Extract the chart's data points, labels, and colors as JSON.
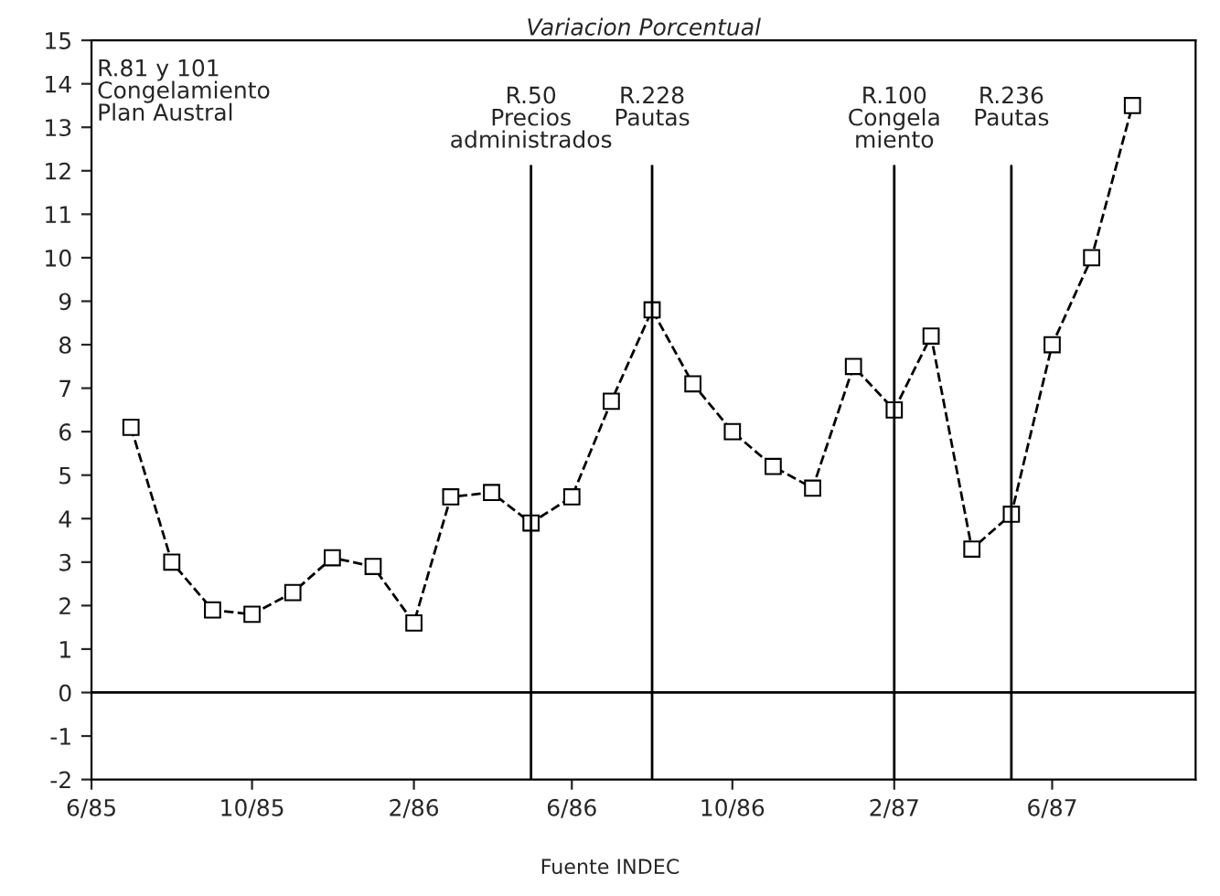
{
  "chart_data": {
    "type": "line",
    "title": "Variacion Porcentual",
    "x": [
      "1985-07",
      "1985-08",
      "1985-09",
      "1985-10",
      "1985-11",
      "1985-12",
      "1986-01",
      "1986-02",
      "1986-03",
      "1986-04",
      "1986-05",
      "1986-06",
      "1986-07",
      "1986-08",
      "1986-09",
      "1986-10",
      "1986-11",
      "1986-12",
      "1987-01",
      "1987-02",
      "1987-03",
      "1987-04",
      "1987-05",
      "1987-06",
      "1987-07",
      "1987-08"
    ],
    "series": [
      {
        "color": "#000000",
        "values": [
          6.1,
          3.0,
          1.9,
          1.8,
          2.3,
          3.1,
          2.9,
          1.6,
          4.5,
          4.6,
          3.9,
          4.5,
          6.7,
          8.8,
          7.1,
          6.0,
          5.2,
          4.7,
          7.5,
          6.5,
          8.2,
          3.3,
          4.1,
          8.0,
          10.0,
          13.5
        ]
      }
    ],
    "marker": "square",
    "line_style": "dashed",
    "xlim": [
      "1985-06",
      "1987-09-18"
    ],
    "ylim": [
      -2,
      15
    ],
    "xticks": [
      {
        "value": "1985-06",
        "label": "6/85"
      },
      {
        "value": "1985-10",
        "label": "10/85"
      },
      {
        "value": "1986-02",
        "label": "2/86"
      },
      {
        "value": "1986-06",
        "label": "6/86"
      },
      {
        "value": "1986-10",
        "label": "10/86"
      },
      {
        "value": "1987-02",
        "label": "2/87"
      },
      {
        "value": "1987-06",
        "label": "6/87"
      }
    ],
    "yticks": [
      -2,
      -1,
      0,
      1,
      2,
      3,
      4,
      5,
      6,
      7,
      8,
      9,
      10,
      11,
      12,
      13,
      14,
      15
    ],
    "ref_lines": [
      {
        "axis": "y",
        "value": 0,
        "label": null
      },
      {
        "axis": "x",
        "value": "1986-05",
        "label": "R.50\nPrecios\nadministrados"
      },
      {
        "axis": "x",
        "value": "1986-08",
        "label": "R.228\nPautas"
      },
      {
        "axis": "x",
        "value": "1987-02",
        "label": "R.100\nCongela\nmiento"
      },
      {
        "axis": "x",
        "value": "1987-05",
        "label": "R.236\nPautas"
      }
    ],
    "annotations": [
      "R.81 y 101\nCongelamiento\nPlan Austral",
      "Fuente INDEC"
    ],
    "grid": false,
    "legend": false
  }
}
